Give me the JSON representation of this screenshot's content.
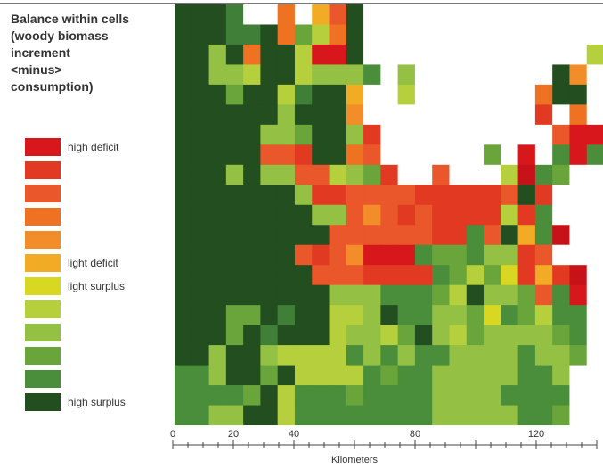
{
  "title_lines": [
    "Balance within cells",
    "(woody biomass",
    " increment",
    " <minus>",
    " consumption)"
  ],
  "legend": [
    {
      "color": "#d7171c",
      "label": "high deficit"
    },
    {
      "color": "#e23a22",
      "label": ""
    },
    {
      "color": "#e9572a",
      "label": ""
    },
    {
      "color": "#ef7223",
      "label": ""
    },
    {
      "color": "#f28d2a",
      "label": ""
    },
    {
      "color": "#f2ab24",
      "label": "light deficit"
    },
    {
      "color": "#d8d721",
      "label": "light surplus"
    },
    {
      "color": "#b6cf3c",
      "label": ""
    },
    {
      "color": "#94c044",
      "label": ""
    },
    {
      "color": "#6aa53b",
      "label": ""
    },
    {
      "color": "#4a8e3b",
      "label": ""
    },
    {
      "color": "#234e1f",
      "label": "high surplus"
    }
  ],
  "palette_note_empty": "#ffffff",
  "map": {
    "rows": [
      "LLL7ww4w63Lwwwwwwwwwwwwww",
      "LLL77L49A4Lwwwwwwwwwwwwww",
      "LL8L4LLA11LwwwwwwwwwwwwwA",
      "LL88ALLA888Ew8wwwwwwwwL5wE",
      "LLL9LLA7LL6wwAwwwwwww4LL",
      "LLLLLL8LLL5wwwwwwwwww2w4w",
      "LLLLL889LL82wwwwwwwwww311",
      "LLLLL332LL43wwwwww9w1wE1E",
      "LLL8L8833A892ww3wwwA0E9",
      "LLLLLLL8223333222223L2",
      "LLLLLLLL88353232222A2E",
      "LLLLLLLLL33333322E3L6E0",
      "LLLLLLL3235111E99E8823",
      "LLLLLLLL3332222E9A9I2620",
      "LLLLLLLLL888EEE9AL8893E1",
      "LLL99L7LLAA8LEE889IE9AEE",
      "LLL9L7LLLA88A9L8A988889E",
      "LL8LL8AAAAE8E8EE8888E889",
      "EE8LL9LAAAAE9EE88888EE8",
      "EEEE9LAEEE9EEEE8888EEEE",
      "EE88LLAEEEEEEEE88888EE9"
    ]
  }
}
